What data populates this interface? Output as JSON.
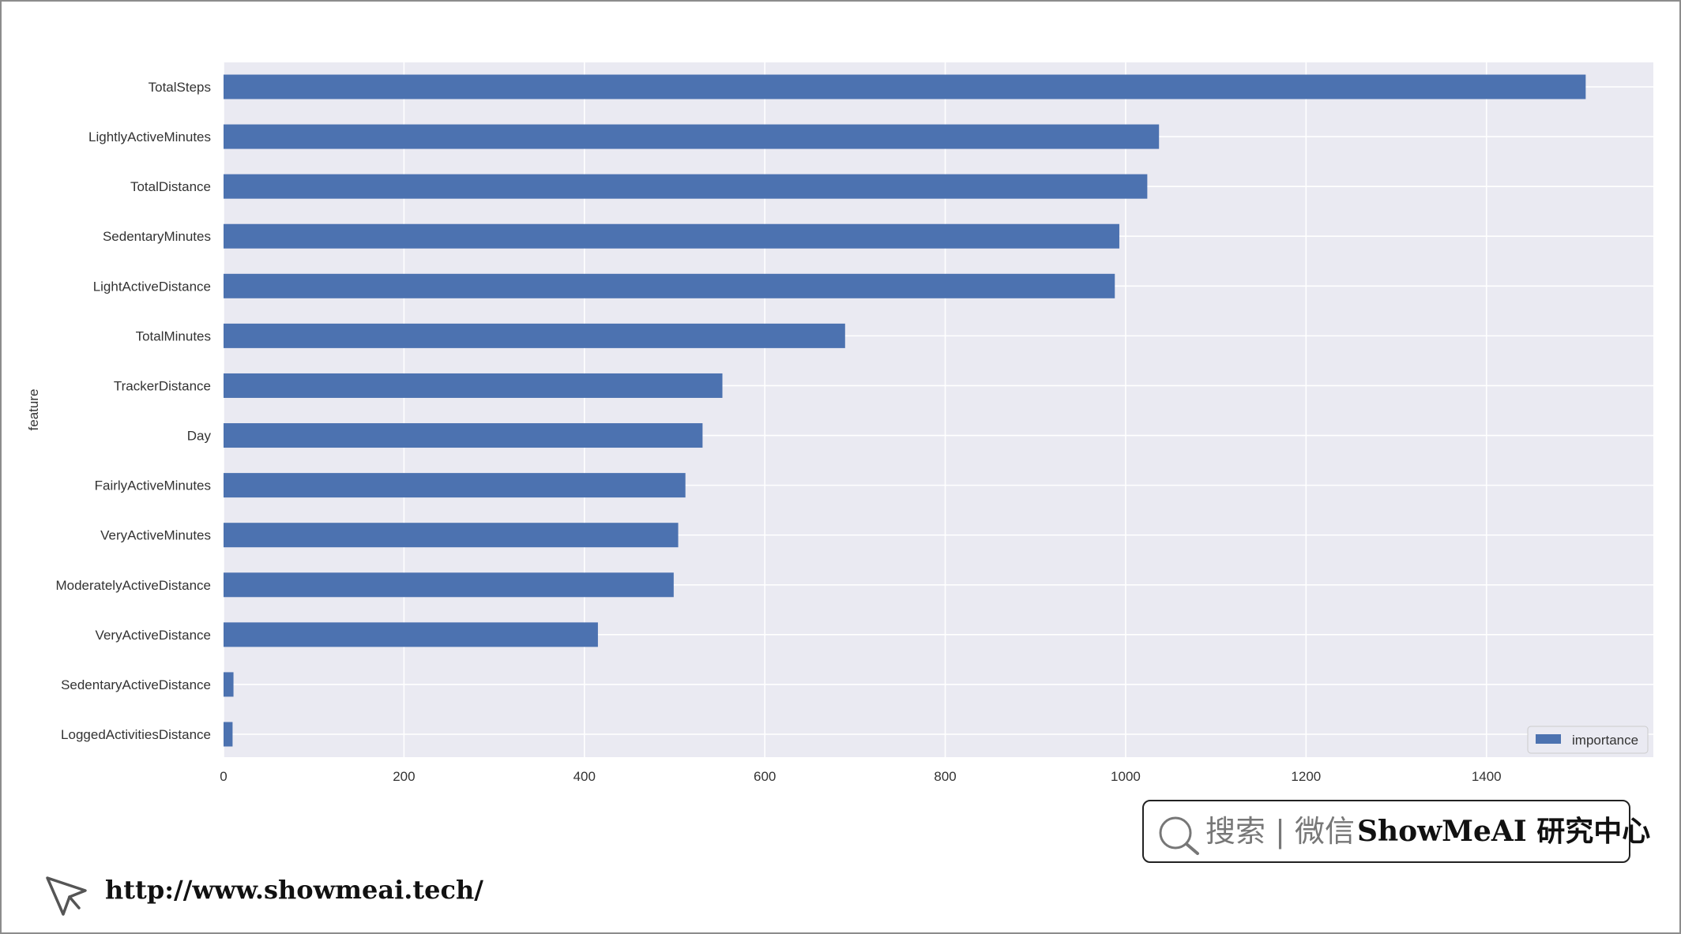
{
  "chart_data": {
    "type": "bar",
    "orientation": "horizontal",
    "title": "",
    "xlabel": "",
    "ylabel": "feature",
    "xlim": [
      0,
      1585
    ],
    "xticks": [
      0,
      200,
      400,
      600,
      800,
      1000,
      1200,
      1400
    ],
    "grid": true,
    "legend_position": "bottom-right",
    "bar_color": "#4C72B0",
    "background_color": "#EAEAF2",
    "categories": [
      "TotalSteps",
      "LightlyActiveMinutes",
      "TotalDistance",
      "SedentaryMinutes",
      "LightActiveDistance",
      "TotalMinutes",
      "TrackerDistance",
      "Day",
      "FairlyActiveMinutes",
      "VeryActiveMinutes",
      "ModeratelyActiveDistance",
      "VeryActiveDistance",
      "SedentaryActiveDistance",
      "LoggedActivitiesDistance"
    ],
    "series": [
      {
        "name": "importance",
        "values": [
          1510,
          1037,
          1024,
          993,
          988,
          689,
          553,
          531,
          512,
          504,
          499,
          415,
          11,
          10
        ]
      }
    ]
  },
  "branding": {
    "search_label": "搜索 | 微信",
    "brand_label": "ShowMeAI 研究中心",
    "url": "http://www.showmeai.tech/"
  },
  "icons": {
    "search": "search-icon",
    "cursor": "cursor-icon"
  }
}
